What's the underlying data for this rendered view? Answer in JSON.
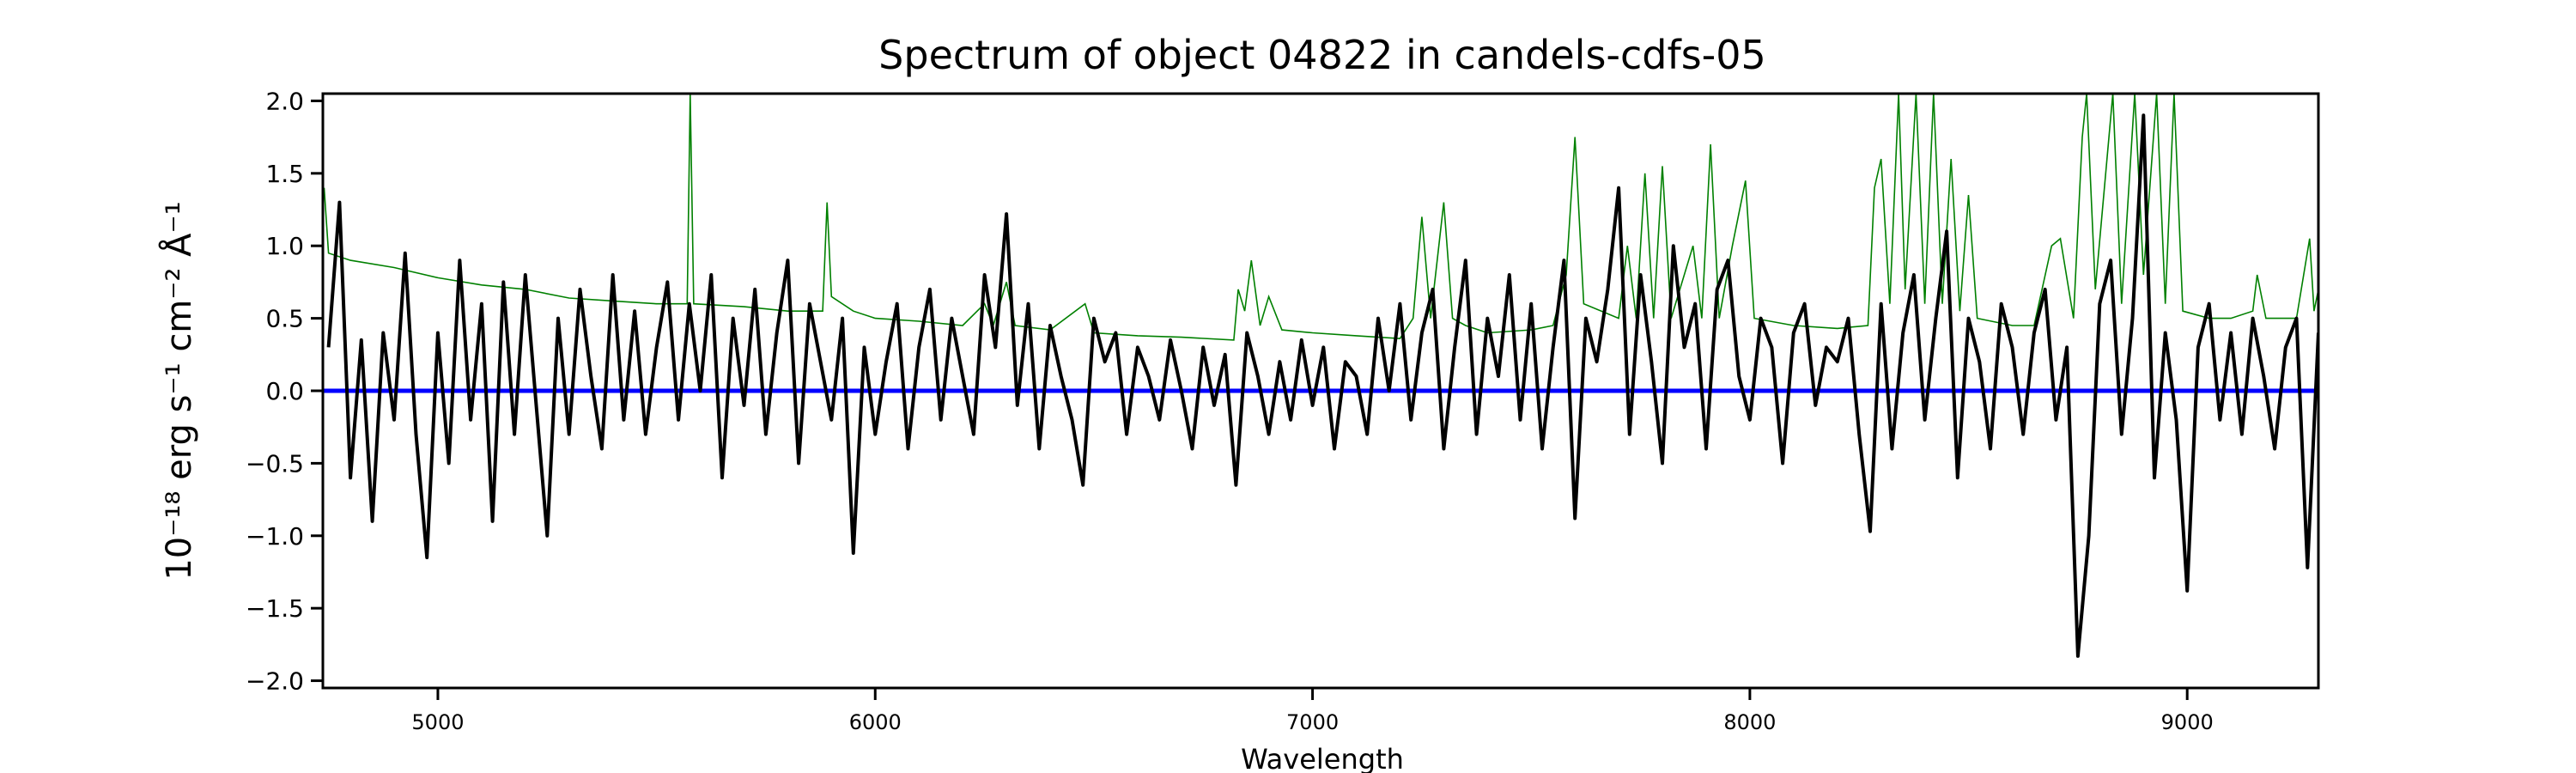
{
  "chart_data": {
    "type": "line",
    "title": "Spectrum of object 04822 in candels-cdfs-05",
    "xlabel": "Wavelength",
    "ylabel": "10⁻¹⁸ erg s⁻¹ cm⁻² Å⁻¹",
    "xlim": [
      4737,
      9300
    ],
    "ylim": [
      -2.05,
      2.05
    ],
    "xticks": [
      5000,
      6000,
      7000,
      8000,
      9000
    ],
    "xtick_labels": [
      "5000",
      "6000",
      "7000",
      "8000",
      "9000"
    ],
    "yticks": [
      2.0,
      1.5,
      1.0,
      0.5,
      0.0,
      -0.5,
      -1.0,
      -1.5,
      -2.0
    ],
    "ytick_labels": [
      "2.0",
      "1.5",
      "1.0",
      "0.5",
      "0.0",
      "−0.5",
      "−1.0",
      "−1.5",
      "−2.0"
    ],
    "grid": false,
    "colors": {
      "flux": "#000000",
      "error": "#008000",
      "zero": "#0000ff"
    },
    "flux": {
      "x_start": 4750,
      "x_step": 25,
      "values": [
        0.3,
        1.3,
        -0.6,
        0.35,
        -0.9,
        0.4,
        -0.2,
        0.95,
        -0.3,
        -1.15,
        0.4,
        -0.5,
        0.9,
        -0.2,
        0.6,
        -0.9,
        0.75,
        -0.3,
        0.8,
        -0.1,
        -1.0,
        0.5,
        -0.3,
        0.7,
        0.1,
        -0.4,
        0.8,
        -0.2,
        0.55,
        -0.3,
        0.3,
        0.75,
        -0.2,
        0.6,
        0.0,
        0.8,
        -0.6,
        0.5,
        -0.1,
        0.7,
        -0.3,
        0.4,
        0.9,
        -0.5,
        0.6,
        0.2,
        -0.2,
        0.5,
        -1.12,
        0.3,
        -0.3,
        0.2,
        0.6,
        -0.4,
        0.3,
        0.7,
        -0.2,
        0.5,
        0.1,
        -0.3,
        0.8,
        0.3,
        1.22,
        -0.1,
        0.6,
        -0.4,
        0.45,
        0.1,
        -0.2,
        -0.65,
        0.5,
        0.2,
        0.4,
        -0.3,
        0.3,
        0.1,
        -0.2,
        0.35,
        0.0,
        -0.4,
        0.3,
        -0.1,
        0.25,
        -0.65,
        0.4,
        0.1,
        -0.3,
        0.2,
        -0.2,
        0.35,
        -0.1,
        0.3,
        -0.4,
        0.2,
        0.1,
        -0.3,
        0.5,
        0.0,
        0.6,
        -0.2,
        0.4,
        0.7,
        -0.4,
        0.3,
        0.9,
        -0.3,
        0.5,
        0.1,
        0.8,
        -0.2,
        0.6,
        -0.4,
        0.3,
        0.9,
        -0.88,
        0.5,
        0.2,
        0.7,
        1.4,
        -0.3,
        0.8,
        0.2,
        -0.5,
        1.0,
        0.3,
        0.6,
        -0.4,
        0.7,
        0.9,
        0.1,
        -0.2,
        0.5,
        0.3,
        -0.5,
        0.4,
        0.6,
        -0.1,
        0.3,
        0.2,
        0.5,
        -0.3,
        -0.97,
        0.6,
        -0.4,
        0.4,
        0.8,
        -0.2,
        0.5,
        1.1,
        -0.6,
        0.5,
        0.2,
        -0.4,
        0.6,
        0.3,
        -0.3,
        0.4,
        0.7,
        -0.2,
        0.3,
        -1.83,
        -1.0,
        0.6,
        0.9,
        -0.3,
        0.5,
        1.9,
        -0.6,
        0.4,
        -0.2,
        -1.38,
        0.3,
        0.6,
        -0.2,
        0.4,
        -0.3,
        0.5,
        0.1,
        -0.4,
        0.3,
        0.5,
        -1.22,
        0.4
      ]
    },
    "error": [
      [
        4740,
        1.4
      ],
      [
        4750,
        0.95
      ],
      [
        4800,
        0.9
      ],
      [
        4900,
        0.85
      ],
      [
        5000,
        0.78
      ],
      [
        5100,
        0.73
      ],
      [
        5200,
        0.7
      ],
      [
        5300,
        0.64
      ],
      [
        5400,
        0.62
      ],
      [
        5500,
        0.6
      ],
      [
        5570,
        0.6
      ],
      [
        5577,
        2.05
      ],
      [
        5585,
        0.6
      ],
      [
        5700,
        0.58
      ],
      [
        5800,
        0.55
      ],
      [
        5880,
        0.55
      ],
      [
        5890,
        1.3
      ],
      [
        5900,
        0.65
      ],
      [
        5950,
        0.55
      ],
      [
        6000,
        0.5
      ],
      [
        6100,
        0.48
      ],
      [
        6200,
        0.45
      ],
      [
        6250,
        0.6
      ],
      [
        6270,
        0.45
      ],
      [
        6300,
        0.75
      ],
      [
        6320,
        0.45
      ],
      [
        6400,
        0.42
      ],
      [
        6480,
        0.6
      ],
      [
        6500,
        0.4
      ],
      [
        6600,
        0.38
      ],
      [
        6700,
        0.37
      ],
      [
        6820,
        0.35
      ],
      [
        6830,
        0.7
      ],
      [
        6845,
        0.55
      ],
      [
        6860,
        0.9
      ],
      [
        6880,
        0.45
      ],
      [
        6900,
        0.65
      ],
      [
        6930,
        0.42
      ],
      [
        7000,
        0.4
      ],
      [
        7100,
        0.38
      ],
      [
        7200,
        0.36
      ],
      [
        7230,
        0.5
      ],
      [
        7250,
        1.2
      ],
      [
        7270,
        0.5
      ],
      [
        7300,
        1.3
      ],
      [
        7320,
        0.5
      ],
      [
        7350,
        0.45
      ],
      [
        7400,
        0.4
      ],
      [
        7500,
        0.42
      ],
      [
        7550,
        0.45
      ],
      [
        7580,
        0.8
      ],
      [
        7600,
        1.75
      ],
      [
        7620,
        0.6
      ],
      [
        7700,
        0.5
      ],
      [
        7720,
        1.0
      ],
      [
        7740,
        0.5
      ],
      [
        7760,
        1.5
      ],
      [
        7780,
        0.5
      ],
      [
        7800,
        1.55
      ],
      [
        7820,
        0.5
      ],
      [
        7870,
        1.0
      ],
      [
        7890,
        0.5
      ],
      [
        7910,
        1.7
      ],
      [
        7930,
        0.5
      ],
      [
        7960,
        1.0
      ],
      [
        7990,
        1.45
      ],
      [
        8010,
        0.5
      ],
      [
        8100,
        0.45
      ],
      [
        8200,
        0.43
      ],
      [
        8270,
        0.45
      ],
      [
        8285,
        1.4
      ],
      [
        8300,
        1.6
      ],
      [
        8320,
        0.6
      ],
      [
        8340,
        2.05
      ],
      [
        8355,
        0.7
      ],
      [
        8380,
        2.05
      ],
      [
        8400,
        0.6
      ],
      [
        8420,
        2.05
      ],
      [
        8440,
        0.6
      ],
      [
        8460,
        1.6
      ],
      [
        8480,
        0.55
      ],
      [
        8500,
        1.35
      ],
      [
        8520,
        0.5
      ],
      [
        8600,
        0.45
      ],
      [
        8650,
        0.45
      ],
      [
        8690,
        1.0
      ],
      [
        8710,
        1.05
      ],
      [
        8740,
        0.5
      ],
      [
        8760,
        1.75
      ],
      [
        8770,
        2.05
      ],
      [
        8790,
        0.7
      ],
      [
        8830,
        2.05
      ],
      [
        8850,
        0.6
      ],
      [
        8880,
        2.05
      ],
      [
        8900,
        0.8
      ],
      [
        8930,
        2.05
      ],
      [
        8950,
        0.6
      ],
      [
        8970,
        2.05
      ],
      [
        8990,
        0.55
      ],
      [
        9050,
        0.5
      ],
      [
        9100,
        0.5
      ],
      [
        9150,
        0.55
      ],
      [
        9160,
        0.8
      ],
      [
        9180,
        0.5
      ],
      [
        9250,
        0.5
      ],
      [
        9280,
        1.05
      ],
      [
        9290,
        0.55
      ],
      [
        9300,
        0.7
      ]
    ],
    "zero_line": 0.0
  }
}
